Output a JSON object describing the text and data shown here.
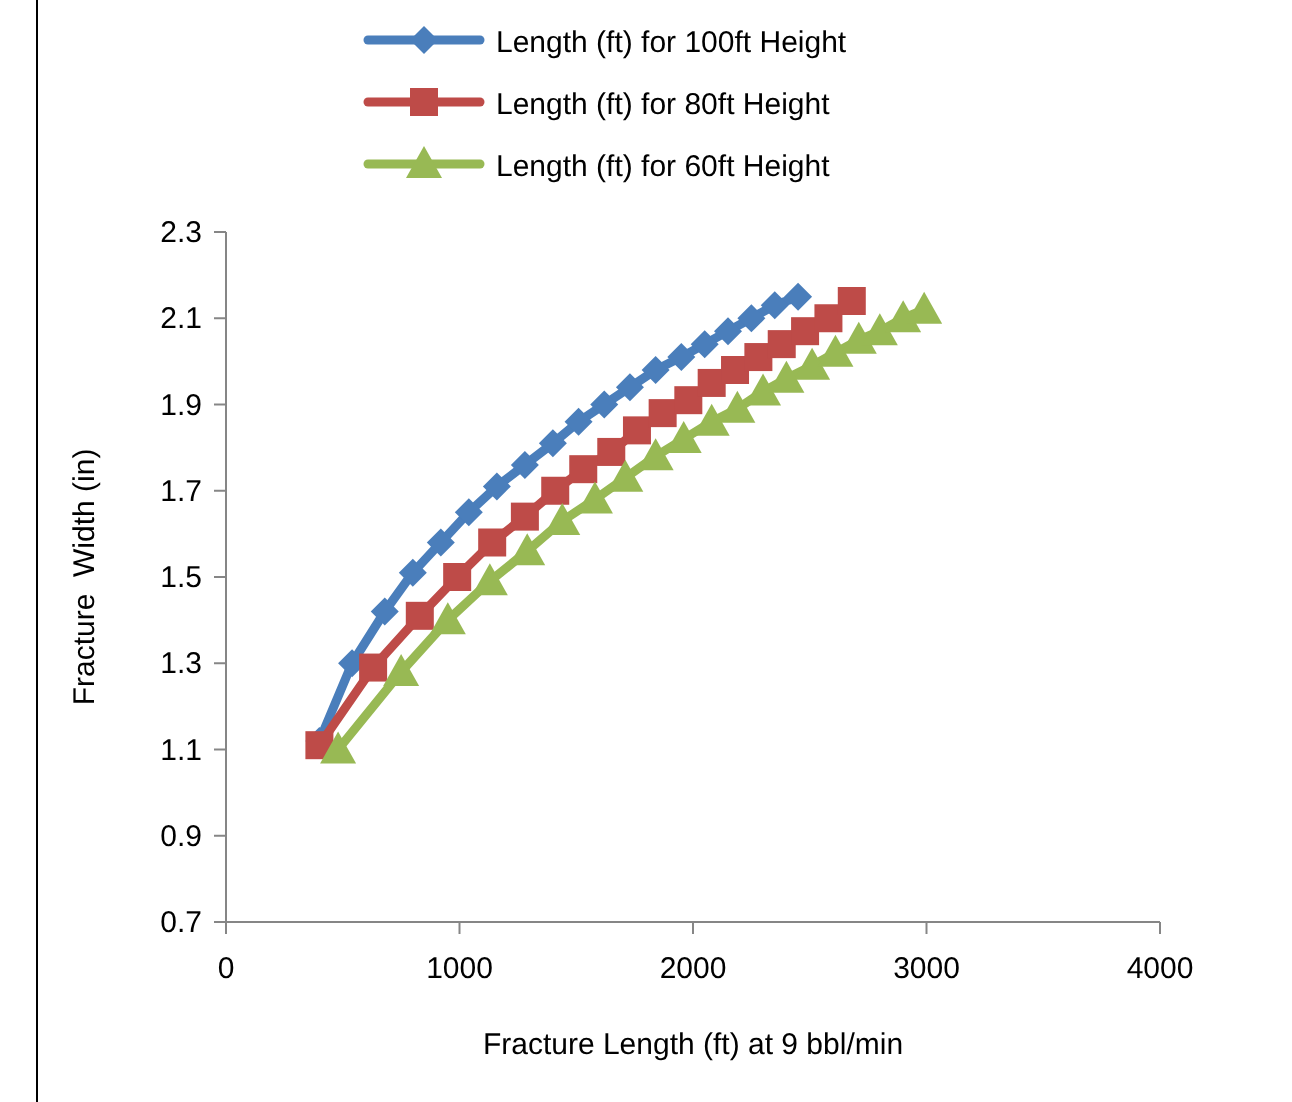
{
  "chart_data": {
    "type": "line",
    "xlabel": "Fracture Length (ft)  at 9 bbl/min",
    "ylabel": "Fracture  Width (in)",
    "xlim": [
      0,
      4000
    ],
    "xticks": [
      0,
      1000,
      2000,
      3000,
      4000
    ],
    "ylim": [
      0.7,
      2.3
    ],
    "yticks": [
      0.7,
      0.9,
      1.1,
      1.3,
      1.5,
      1.7,
      1.9,
      2.1,
      2.3
    ],
    "legend": "top",
    "grid": false,
    "series": [
      {
        "name": "Length (ft) for 100ft Height",
        "color": "#4a7ebb",
        "marker": "diamond",
        "x": [
          400,
          540,
          680,
          800,
          920,
          1040,
          1160,
          1280,
          1400,
          1510,
          1620,
          1730,
          1840,
          1950,
          2050,
          2150,
          2250,
          2350,
          2450
        ],
        "values": [
          1.12,
          1.3,
          1.42,
          1.51,
          1.58,
          1.65,
          1.71,
          1.76,
          1.81,
          1.86,
          1.9,
          1.94,
          1.98,
          2.01,
          2.04,
          2.07,
          2.1,
          2.13,
          2.15
        ]
      },
      {
        "name": "Length (ft) for 80ft Height",
        "color": "#be4b48",
        "marker": "square",
        "x": [
          400,
          630,
          830,
          990,
          1140,
          1280,
          1410,
          1530,
          1650,
          1760,
          1870,
          1980,
          2080,
          2180,
          2280,
          2380,
          2480,
          2580,
          2680
        ],
        "values": [
          1.11,
          1.29,
          1.41,
          1.5,
          1.58,
          1.64,
          1.7,
          1.75,
          1.79,
          1.84,
          1.88,
          1.91,
          1.95,
          1.98,
          2.01,
          2.04,
          2.07,
          2.1,
          2.14
        ]
      },
      {
        "name": "Length (ft) for 60ft Height",
        "color": "#98b954",
        "marker": "triangle",
        "x": [
          480,
          750,
          950,
          1130,
          1290,
          1440,
          1580,
          1710,
          1840,
          1960,
          2080,
          2190,
          2300,
          2400,
          2510,
          2610,
          2710,
          2800,
          2900,
          2990
        ],
        "values": [
          1.1,
          1.28,
          1.4,
          1.49,
          1.56,
          1.63,
          1.68,
          1.73,
          1.78,
          1.82,
          1.86,
          1.89,
          1.93,
          1.96,
          1.99,
          2.02,
          2.05,
          2.07,
          2.1,
          2.12
        ]
      }
    ]
  }
}
